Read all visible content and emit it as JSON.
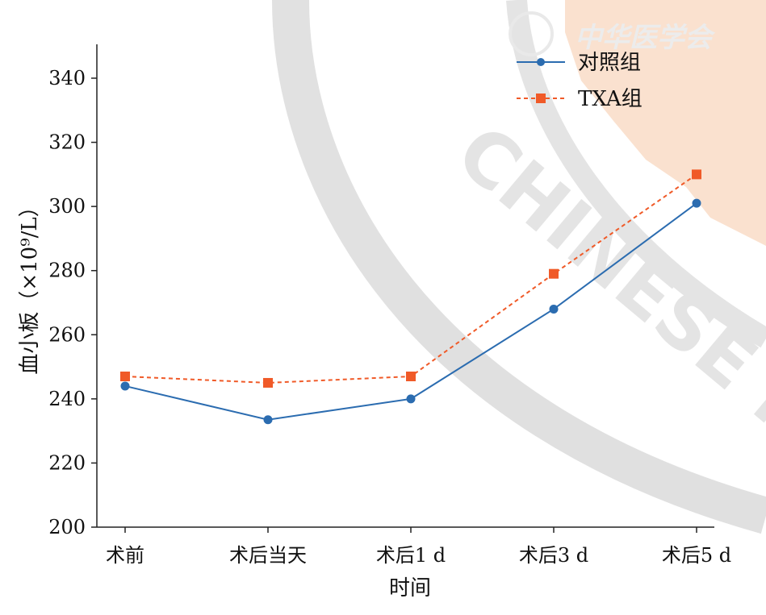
{
  "chart_data": {
    "type": "line",
    "categories": [
      "术前",
      "术后当天",
      "术后1 d",
      "术后3 d",
      "术后5 d"
    ],
    "xlabel": "时间",
    "ylabel": "血小板（×10⁹/L）",
    "ylim": [
      200,
      350
    ],
    "yticks": [
      200,
      220,
      240,
      260,
      280,
      300,
      320,
      340
    ],
    "grid": false,
    "legend_position": "top-right",
    "series": [
      {
        "name": "对照组",
        "values": [
          244,
          233.5,
          240,
          268,
          301
        ],
        "color": "#2b6cb0",
        "marker": "circle",
        "line": "solid"
      },
      {
        "name": "TXA组",
        "values": [
          247,
          245,
          247,
          279,
          310
        ],
        "color": "#f05a28",
        "marker": "square",
        "line": "dashed"
      }
    ]
  },
  "watermark": {
    "text": "CHINESE MEDIC",
    "seal_text": "中华医学会"
  }
}
